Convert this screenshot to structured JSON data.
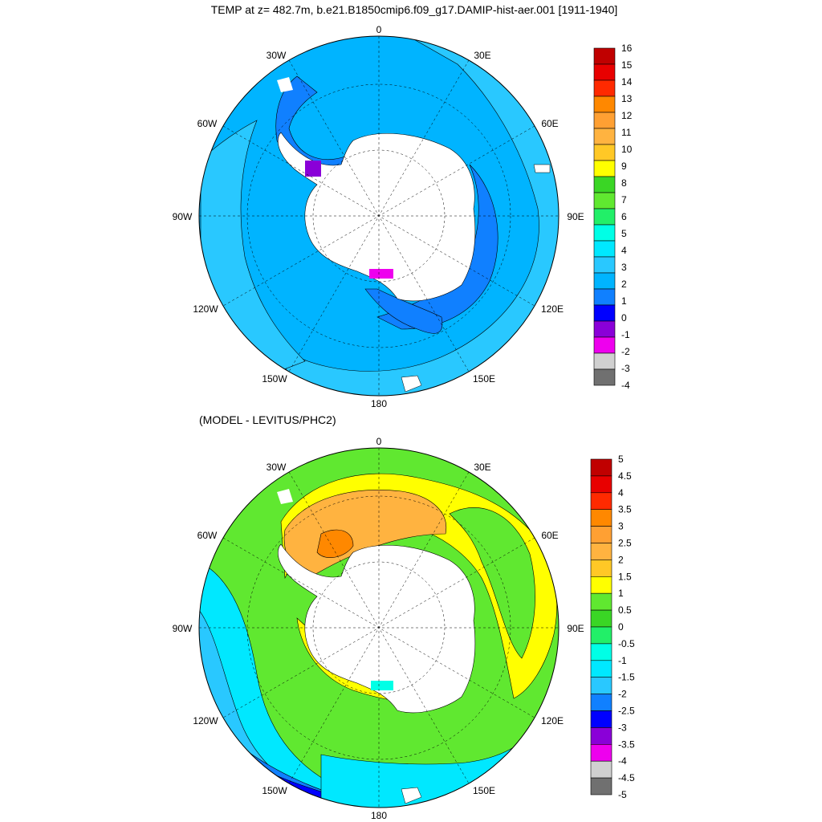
{
  "chart_data": [
    {
      "type": "heatmap",
      "projection": "south-polar-stereographic",
      "title": "TEMP at z= 482.7m, b.e21.B1850cmip6.f09_g17.DAMIP-hist-aer.001 [1911-1940]",
      "lon_labels": [
        "0",
        "30E",
        "60E",
        "90E",
        "120E",
        "150E",
        "180",
        "150W",
        "120W",
        "90W",
        "60W",
        "30W"
      ],
      "colorbar": {
        "levels": [
          "16",
          "15",
          "14",
          "13",
          "12",
          "11",
          "10",
          "9",
          "8",
          "7",
          "6",
          "5",
          "4",
          "3",
          "2",
          "1",
          "0",
          "-1",
          "-2",
          "-3",
          "-4"
        ],
        "colors": [
          "#c00000",
          "#e80000",
          "#ff2a00",
          "#ff8800",
          "#ffa033",
          "#ffb340",
          "#ffc826",
          "#ffff00",
          "#3ad625",
          "#60e830",
          "#22ef68",
          "#00ffe6",
          "#00e8ff",
          "#29c8ff",
          "#00b4ff",
          "#1080ff",
          "#0000ff",
          "#8a00d8",
          "#ee00ee",
          "#d0d0d0",
          "#707070"
        ]
      }
    },
    {
      "type": "heatmap",
      "projection": "south-polar-stereographic",
      "title": "(MODEL - LEVITUS/PHC2)",
      "lon_labels": [
        "0",
        "30E",
        "60E",
        "90E",
        "120E",
        "150E",
        "180",
        "150W",
        "120W",
        "90W",
        "60W",
        "30W"
      ],
      "colorbar": {
        "levels": [
          "5",
          "4.5",
          "4",
          "3.5",
          "3",
          "2.5",
          "2",
          "1.5",
          "1",
          "0.5",
          "0",
          "-0.5",
          "-1",
          "-1.5",
          "-2",
          "-2.5",
          "-3",
          "-3.5",
          "-4",
          "-4.5",
          "-5"
        ],
        "colors": [
          "#c00000",
          "#e80000",
          "#ff2a00",
          "#ff8800",
          "#ffa033",
          "#ffb340",
          "#ffc826",
          "#ffff00",
          "#60e830",
          "#3ad625",
          "#22ef68",
          "#00ffe6",
          "#00e8ff",
          "#29c8ff",
          "#1080ff",
          "#0000ff",
          "#8a00d8",
          "#ee00ee",
          "#d0d0d0",
          "#707070"
        ]
      }
    }
  ]
}
